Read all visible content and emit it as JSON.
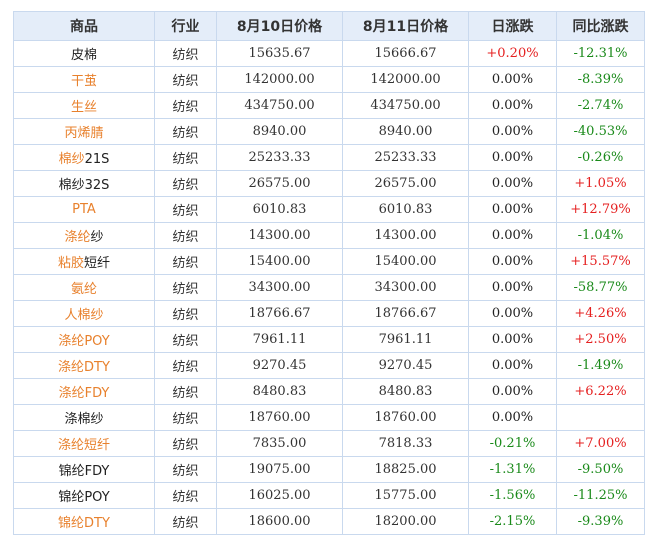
{
  "colors": {
    "header_bg": "#e4edf9",
    "border": "#c9d9ee",
    "link_orange": "#e8812d",
    "up_red": "#e52020",
    "down_green": "#1a8a1a"
  },
  "table": {
    "headers": [
      "商品",
      "行业",
      "8月10日价格",
      "8月11日价格",
      "日涨跌",
      "同比涨跌"
    ],
    "rows": [
      {
        "name_a": "皮棉",
        "name_b": "",
        "name_a_color": "dark",
        "industry": "纺织",
        "p1": "15635.67",
        "p2": "15666.67",
        "day": "+0.20%",
        "day_color": "red",
        "yoy": "-12.31%",
        "yoy_color": "green"
      },
      {
        "name_a": "干茧",
        "name_b": "",
        "name_a_color": "orange",
        "industry": "纺织",
        "p1": "142000.00",
        "p2": "142000.00",
        "day": "0.00%",
        "day_color": "dark",
        "yoy": "-8.39%",
        "yoy_color": "green"
      },
      {
        "name_a": "生丝",
        "name_b": "",
        "name_a_color": "orange",
        "industry": "纺织",
        "p1": "434750.00",
        "p2": "434750.00",
        "day": "0.00%",
        "day_color": "dark",
        "yoy": "-2.74%",
        "yoy_color": "green"
      },
      {
        "name_a": "丙烯腈",
        "name_b": "",
        "name_a_color": "orange",
        "industry": "纺织",
        "p1": "8940.00",
        "p2": "8940.00",
        "day": "0.00%",
        "day_color": "dark",
        "yoy": "-40.53%",
        "yoy_color": "green"
      },
      {
        "name_a": "棉纱",
        "name_b": "21S",
        "name_a_color": "orange",
        "industry": "纺织",
        "p1": "25233.33",
        "p2": "25233.33",
        "day": "0.00%",
        "day_color": "dark",
        "yoy": "-0.26%",
        "yoy_color": "green"
      },
      {
        "name_a": "棉纱32S",
        "name_b": "",
        "name_a_color": "dark",
        "industry": "纺织",
        "p1": "26575.00",
        "p2": "26575.00",
        "day": "0.00%",
        "day_color": "dark",
        "yoy": "+1.05%",
        "yoy_color": "red"
      },
      {
        "name_a": "PTA",
        "name_b": "",
        "name_a_color": "orange",
        "industry": "纺织",
        "p1": "6010.83",
        "p2": "6010.83",
        "day": "0.00%",
        "day_color": "dark",
        "yoy": "+12.79%",
        "yoy_color": "red"
      },
      {
        "name_a": "涤纶",
        "name_b": "纱",
        "name_a_color": "orange",
        "industry": "纺织",
        "p1": "14300.00",
        "p2": "14300.00",
        "day": "0.00%",
        "day_color": "dark",
        "yoy": "-1.04%",
        "yoy_color": "green"
      },
      {
        "name_a": "粘胶",
        "name_b": "短纤",
        "name_a_color": "orange",
        "industry": "纺织",
        "p1": "15400.00",
        "p2": "15400.00",
        "day": "0.00%",
        "day_color": "dark",
        "yoy": "+15.57%",
        "yoy_color": "red"
      },
      {
        "name_a": "氨纶",
        "name_b": "",
        "name_a_color": "orange",
        "industry": "纺织",
        "p1": "34300.00",
        "p2": "34300.00",
        "day": "0.00%",
        "day_color": "dark",
        "yoy": "-58.77%",
        "yoy_color": "green"
      },
      {
        "name_a": "人棉纱",
        "name_b": "",
        "name_a_color": "orange",
        "industry": "纺织",
        "p1": "18766.67",
        "p2": "18766.67",
        "day": "0.00%",
        "day_color": "dark",
        "yoy": "+4.26%",
        "yoy_color": "red"
      },
      {
        "name_a": "涤纶POY",
        "name_b": "",
        "name_a_color": "orange",
        "industry": "纺织",
        "p1": "7961.11",
        "p2": "7961.11",
        "day": "0.00%",
        "day_color": "dark",
        "yoy": "+2.50%",
        "yoy_color": "red"
      },
      {
        "name_a": "涤纶DTY",
        "name_b": "",
        "name_a_color": "orange",
        "industry": "纺织",
        "p1": "9270.45",
        "p2": "9270.45",
        "day": "0.00%",
        "day_color": "dark",
        "yoy": "-1.49%",
        "yoy_color": "green"
      },
      {
        "name_a": "涤纶FDY",
        "name_b": "",
        "name_a_color": "orange",
        "industry": "纺织",
        "p1": "8480.83",
        "p2": "8480.83",
        "day": "0.00%",
        "day_color": "dark",
        "yoy": "+6.22%",
        "yoy_color": "red"
      },
      {
        "name_a": "涤棉纱",
        "name_b": "",
        "name_a_color": "dark",
        "industry": "纺织",
        "p1": "18760.00",
        "p2": "18760.00",
        "day": "0.00%",
        "day_color": "dark",
        "yoy": "",
        "yoy_color": "dark"
      },
      {
        "name_a": "涤纶短纤",
        "name_b": "",
        "name_a_color": "orange",
        "industry": "纺织",
        "p1": "7835.00",
        "p2": "7818.33",
        "day": "-0.21%",
        "day_color": "green",
        "yoy": "+7.00%",
        "yoy_color": "red"
      },
      {
        "name_a": "锦纶FDY",
        "name_b": "",
        "name_a_color": "dark",
        "industry": "纺织",
        "p1": "19075.00",
        "p2": "18825.00",
        "day": "-1.31%",
        "day_color": "green",
        "yoy": "-9.50%",
        "yoy_color": "green"
      },
      {
        "name_a": "锦纶POY",
        "name_b": "",
        "name_a_color": "dark",
        "industry": "纺织",
        "p1": "16025.00",
        "p2": "15775.00",
        "day": "-1.56%",
        "day_color": "green",
        "yoy": "-11.25%",
        "yoy_color": "green"
      },
      {
        "name_a": "锦纶DTY",
        "name_b": "",
        "name_a_color": "orange",
        "industry": "纺织",
        "p1": "18600.00",
        "p2": "18200.00",
        "day": "-2.15%",
        "day_color": "green",
        "yoy": "-9.39%",
        "yoy_color": "green"
      }
    ]
  }
}
